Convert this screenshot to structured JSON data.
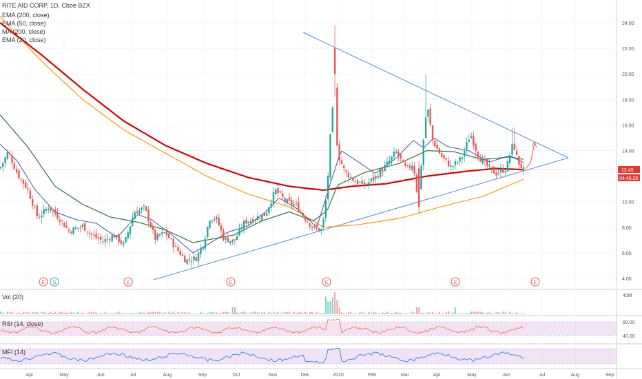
{
  "header": {
    "symbol_line": "RITE AID CORP, 1D, Cboe BZX",
    "indicators": [
      "EMA (200, close)",
      "EMA (50, close)",
      "MA (200, close)",
      "EMA (20, close)"
    ]
  },
  "price_axis": {
    "ticks": [
      "24.00",
      "22.00",
      "20.00",
      "18.00",
      "16.00",
      "14.00",
      "12.00",
      "10.00",
      "8.00",
      "6.00",
      "4.00"
    ],
    "last_price": "12.49",
    "countdown": "04:45:28",
    "last_price_color": "#e53935"
  },
  "time_axis": {
    "ticks": [
      "Apr",
      "May",
      "Jun",
      "Jul",
      "Aug",
      "Sep",
      "Oct",
      "Nov",
      "Dec",
      "2020",
      "Feb",
      "Mar",
      "Apr",
      "May",
      "Jun",
      "Jul",
      "Aug",
      "Sep"
    ]
  },
  "events": [
    "E",
    "S",
    "E",
    "E",
    "E",
    "E",
    "E"
  ],
  "panels": {
    "vol": {
      "label": "Vol (20)",
      "scale": "40M"
    },
    "rsi": {
      "label": "RSI (14, close)",
      "scale_top": "80.00",
      "scale_bottom": "40.00"
    },
    "mfi": {
      "label": "MFI (14)"
    }
  },
  "colors": {
    "up": "#26a69a",
    "down": "#ef5350",
    "ema200": "#ff9800",
    "ema50": "#3a7d44",
    "ma200": "#d50000",
    "ema20": "#3f51b5",
    "trendline": "#4a90d9",
    "rsi": "#ff7043",
    "mfi": "#1e88e5",
    "band": "#e1bee7"
  },
  "chart_data": {
    "type": "candlestick",
    "title": "RITE AID CORP, 1D, Cboe BZX",
    "ylim": [
      3.5,
      25
    ],
    "x": [
      "Apr",
      "May",
      "Jun",
      "Jul",
      "Aug",
      "Sep",
      "Oct",
      "Nov",
      "Dec",
      "2020",
      "Feb",
      "Mar",
      "Apr",
      "May",
      "Jun",
      "Jul"
    ],
    "close": [
      11.8,
      8.4,
      7.1,
      9.3,
      5.6,
      6.6,
      7.9,
      10.8,
      8.3,
      13.2,
      12.4,
      9.6,
      14.8,
      12.9,
      13.0,
      12.49
    ],
    "high": [
      13.5,
      9.5,
      8.2,
      10.1,
      6.9,
      8.4,
      9.0,
      11.3,
      9.2,
      23.8,
      17.5,
      19.9,
      16.5,
      14.5,
      15.6,
      13.4
    ],
    "low": [
      10.2,
      7.2,
      6.4,
      6.8,
      5.0,
      5.2,
      6.8,
      8.7,
      7.5,
      11.0,
      11.2,
      9.1,
      11.5,
      11.0,
      12.0,
      12.3
    ],
    "series": [
      {
        "name": "EMA (200, close)",
        "values": [
          20.5,
          17.0,
          14.6,
          12.6,
          11.0,
          9.8,
          9.6,
          9.3,
          8.3,
          8.0,
          8.3,
          8.6,
          9.5,
          10.2,
          11.1,
          11.8
        ]
      },
      {
        "name": "EMA (50, close)",
        "values": [
          14.5,
          10.6,
          9.0,
          8.9,
          7.5,
          7.1,
          7.3,
          9.1,
          9.0,
          11.6,
          12.3,
          13.4,
          13.5,
          12.8,
          12.9,
          12.9
        ]
      },
      {
        "name": "MA (200, close)",
        "values": [
          22.5,
          18.7,
          15.0,
          12.8,
          11.9,
          11.3,
          10.8,
          10.5,
          10.0,
          11.0,
          11.4,
          12.3,
          12.6,
          12.6,
          12.9,
          12.9
        ]
      },
      {
        "name": "EMA (20, close)",
        "values": [
          12.8,
          9.0,
          7.8,
          8.6,
          6.9,
          6.4,
          7.8,
          10.5,
          8.6,
          13.6,
          12.8,
          12.6,
          14.5,
          12.7,
          13.3,
          13.2
        ]
      }
    ],
    "trendlines": [
      {
        "name": "upper",
        "from": [
          8.3,
          23.1
        ],
        "to": [
          16.2,
          13.4
        ]
      },
      {
        "name": "lower",
        "from": [
          3.3,
          4.0
        ],
        "to": [
          16.2,
          13.4
        ]
      }
    ]
  }
}
